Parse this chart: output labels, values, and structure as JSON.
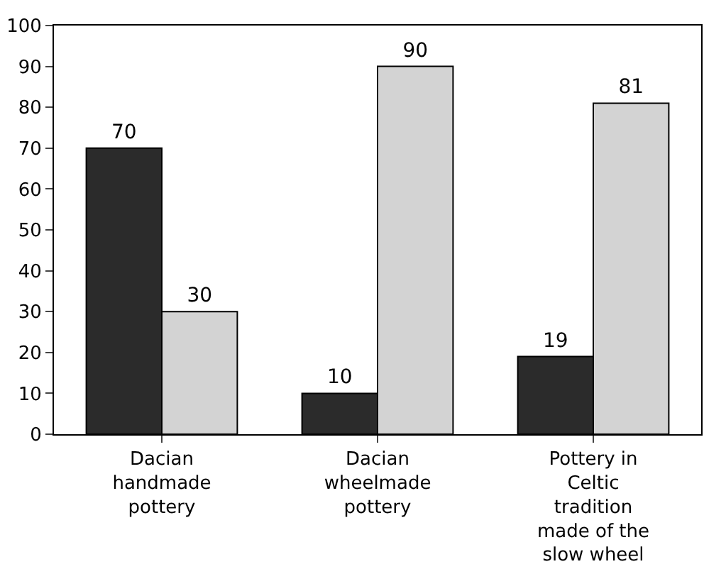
{
  "chart_data": {
    "type": "bar",
    "categories": [
      "Dacian handmade pottery",
      "Dacian wheelmade pottery",
      "Pottery in Celtic tradition made of the slow wheel"
    ],
    "series": [
      {
        "color": "#2b2b2b",
        "values": [
          70,
          10,
          19
        ]
      },
      {
        "color": "#d3d3d3",
        "values": [
          30,
          90,
          81
        ]
      }
    ],
    "ylim": [
      0,
      100
    ],
    "yticks": [
      0,
      10,
      20,
      30,
      40,
      50,
      60,
      70,
      80,
      90,
      100
    ],
    "data_labels": true,
    "legend": false
  }
}
